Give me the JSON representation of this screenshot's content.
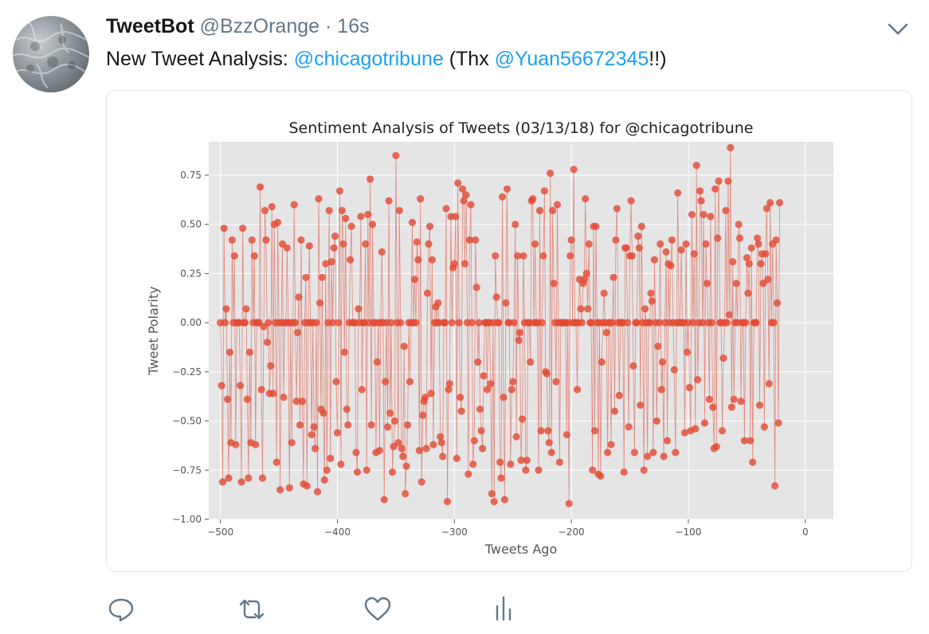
{
  "tweet": {
    "display_name": "TweetBot",
    "handle": "@BzzOrange",
    "separator": "·",
    "time": "16s",
    "text_prefix": "New Tweet Analysis: ",
    "mention_1": "@chicagotribune",
    "text_middle": " (Thx ",
    "mention_2": "@Yuan56672345",
    "text_suffix": "!!)"
  },
  "actions": {
    "reply_icon": "reply-icon",
    "retweet_icon": "retweet-icon",
    "like_icon": "heart-icon",
    "analytics_icon": "analytics-icon"
  },
  "colors": {
    "accent": "#1da1f2",
    "marker": "#e24a33",
    "plot_bg": "#e5e5e5",
    "muted": "#657786"
  },
  "chart_data": {
    "type": "line",
    "title": "Sentiment Analysis of Tweets (03/13/18) for @chicagotribune",
    "xlabel": "Tweets Ago",
    "ylabel": "Tweet Polarity",
    "xlim": [
      -510,
      24
    ],
    "ylim": [
      -1.0,
      0.92
    ],
    "xticks": [
      -500,
      -400,
      -300,
      -200,
      -100,
      0
    ],
    "yticks": [
      -1.0,
      -0.75,
      -0.5,
      -0.25,
      0.0,
      0.25,
      0.5,
      0.75
    ],
    "ytick_labels": [
      "−1.00",
      "−0.75",
      "−0.50",
      "−0.25",
      "0.00",
      "0.25",
      "0.50",
      "0.75"
    ],
    "xtick_labels": [
      "−500",
      "−400",
      "−300",
      "−200",
      "−100",
      "0"
    ],
    "grid": true,
    "series": [
      {
        "x_start": -500,
        "x_step": 1,
        "values": [
          0,
          -0.32,
          -0.81,
          0.48,
          0,
          0.07,
          -0.39,
          -0.79,
          -0.15,
          -0.61,
          0.42,
          0,
          0.34,
          -0.62,
          0,
          0,
          0,
          -0.32,
          -0.81,
          0.48,
          0,
          0,
          0.07,
          -0.39,
          -0.79,
          -0.15,
          -0.61,
          0.42,
          0,
          0.34,
          -0.62,
          0,
          0,
          0,
          0.69,
          -0.34,
          -0.79,
          -0.02,
          0.57,
          0.42,
          -0.1,
          0,
          -0.36,
          -0.22,
          0.59,
          -0.36,
          0.5,
          0,
          -0.71,
          0.51,
          0,
          -0.85,
          0,
          0.4,
          -0.38,
          0,
          0,
          0.38,
          0,
          -0.84,
          0,
          -0.61,
          0,
          0.6,
          0,
          -0.4,
          -0.05,
          0.13,
          -0.52,
          0.42,
          -0.4,
          -0.82,
          0,
          0.23,
          -0.83,
          0,
          0.39,
          0,
          -0.57,
          0,
          -0.53,
          -0.64,
          0,
          -0.86,
          0.63,
          0.1,
          -0.44,
          0.23,
          -0.46,
          -0.8,
          0.3,
          -0.75,
          0,
          0.57,
          -0.69,
          0.31,
          0,
          0.38,
          0.44,
          -0.3,
          -0.56,
          0,
          0.67,
          -0.72,
          0.57,
          0.4,
          -0.15,
          0.53,
          -0.44,
          -0.52,
          0,
          0.32,
          0.49,
          0,
          0,
          0,
          -0.66,
          -0.76,
          0.07,
          0,
          0.54,
          -0.34,
          0,
          0,
          0.4,
          -0.75,
          0.55,
          0,
          0.73,
          -0.52,
          0.5,
          0,
          0,
          -0.66,
          -0.2,
          0,
          -0.65,
          0,
          0.36,
          0,
          -0.9,
          -0.3,
          0,
          -0.53,
          0.62,
          -0.46,
          0,
          -0.76,
          -0.63,
          -0.5,
          0.85,
          0,
          -0.61,
          0.57,
          0,
          -0.64,
          -0.68,
          -0.12,
          -0.87,
          -0.73,
          -0.52,
          0,
          -0.3,
          0,
          0.51,
          0,
          0.22,
          0,
          0.41,
          0.32,
          -0.65,
          0.63,
          -0.81,
          -0.47,
          -0.4,
          -0.38,
          -0.64,
          0.15,
          0.4,
          0.49,
          -0.36,
          0.32,
          -0.62,
          0,
          0.08,
          0,
          0.1,
          0,
          -0.58,
          -0.61,
          -0.68,
          0,
          0,
          0.58,
          -0.91,
          -0.34,
          -0.31,
          0.54,
          0,
          0.28,
          0.3,
          0.54,
          -0.69,
          0.71,
          0,
          -0.38,
          -0.45,
          0.68,
          0.62,
          0.3,
          0.65,
          0,
          -0.77,
          0.42,
          0.6,
          0,
          -0.72,
          -0.6,
          0.42,
          0.18,
          -0.2,
          0,
          -0.44,
          -0.55,
          -0.64,
          -0.27,
          0,
          0,
          -0.34,
          0,
          0,
          -0.31,
          -0.87,
          0,
          -0.91,
          0.34,
          0.13,
          0,
          0,
          -0.71,
          -0.79,
          0.64,
          -0.38,
          -0.9,
          0.1,
          0.68,
          0,
          0,
          -0.72,
          -0.34,
          -0.3,
          0,
          0.5,
          -0.58,
          0.34,
          -0.09,
          -0.05,
          -0.7,
          -0.49,
          0.34,
          0,
          -0.75,
          -0.7,
          0,
          0,
          -0.2,
          0.62,
          0.63,
          0,
          0.4,
          0,
          0,
          -0.75,
          0.57,
          -0.55,
          0,
          0.34,
          0.67,
          -0.25,
          -0.26,
          -0.55,
          -0.61,
          0.76,
          -0.66,
          0.57,
          0.2,
          0,
          -0.3,
          0.6,
          0,
          -0.71,
          0,
          0,
          0,
          0,
          0,
          -0.57,
          0,
          -0.92,
          0.34,
          0.42,
          0,
          0.78,
          0,
          0,
          -0.34,
          0,
          0.22,
          0.07,
          0,
          0.2,
          0.22,
          0.63,
          0.25,
          0.07,
          0.4,
          0,
          0,
          -0.75,
          0.49,
          -0.55,
          0.49,
          0,
          -0.77,
          0,
          -0.78,
          -0.2,
          0,
          0.15,
          0,
          -0.05,
          -0.66,
          0,
          0,
          -0.62,
          0,
          0.23,
          -0.45,
          0.42,
          0.58,
          0,
          -0.37,
          0,
          0,
          0,
          -0.76,
          0.38,
          0.38,
          0,
          -0.53,
          0.34,
          0.62,
          0.34,
          -0.22,
          -0.66,
          0,
          0,
          0.44,
          0.38,
          -0.42,
          0.49,
          0,
          -0.75,
          0.07,
          0,
          -0.68,
          0,
          0,
          0.15,
          0.11,
          -0.66,
          0.32,
          0,
          -0.5,
          -0.12,
          0,
          0.4,
          -0.34,
          -0.2,
          -0.68,
          0,
          0.36,
          -0.6,
          0.3,
          0,
          0.29,
          0.42,
          0,
          -0.24,
          -0.66,
          0,
          0.66,
          0,
          0,
          0.37,
          0,
          0,
          -0.56,
          0.4,
          -0.15,
          0,
          -0.33,
          -0.55,
          0.55,
          0,
          0.35,
          -0.54,
          0.8,
          -0.29,
          0,
          0.67,
          0.62,
          0,
          0.55,
          -0.51,
          0.4,
          0.2,
          0,
          -0.39,
          0.54,
          0,
          -0.43,
          -0.64,
          0.68,
          -0.63,
          0.43,
          0.72,
          0,
          0,
          -0.55,
          -0.18,
          0,
          0.57,
          0,
          0.72,
          0.04,
          0.89,
          -0.43,
          0.31,
          -0.39,
          0,
          0.2,
          0,
          0.5,
          0.43,
          -0.4,
          0,
          0,
          -0.6,
          0,
          0.33,
          0.15,
          0.3,
          -0.6,
          0.38,
          -0.71,
          0,
          0,
          0,
          0.43,
          0.4,
          -0.42,
          0.3,
          0.35,
          0.2,
          -0.53,
          0.35,
          0.58,
          0.22,
          -0.31,
          0.61,
          0,
          0.4,
          0,
          -0.83,
          0.42,
          0.1,
          -0.51,
          0.61
        ],
        "color": "#e24a33"
      }
    ]
  }
}
